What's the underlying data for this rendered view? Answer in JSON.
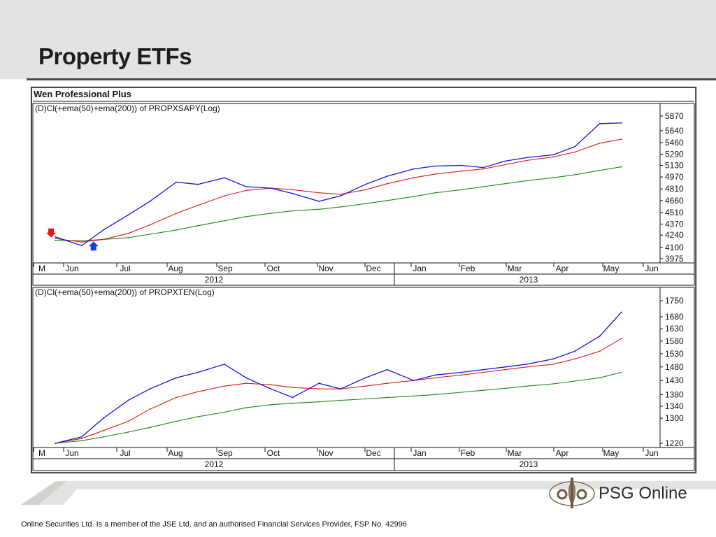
{
  "slide": {
    "title": "Property ETFs",
    "logo_text": "PSG Online",
    "disclaimer": "Online Securities Ltd. Is a member of the JSE Ltd. and an authorised Financial Services Provider, FSP No. 42996"
  },
  "chart_window": {
    "title": "Wen Professional Plus"
  },
  "colors": {
    "price": "#1414e6",
    "ema50": "#e01a1a",
    "ema200": "#1a8a1a",
    "sell_arrow": "#e01a1a",
    "buy_arrow": "#1a3ce0"
  },
  "chart_data": [
    {
      "type": "line",
      "title": "(D)Cl(+ema(50)+ema(200)) of PROPXSAPY(Log)",
      "y_scale": "log",
      "ylim": [
        3975,
        5870
      ],
      "y_ticks": [
        5870,
        5640,
        5460,
        5290,
        5130,
        4970,
        4810,
        4660,
        4510,
        4370,
        4240,
        4100,
        3975
      ],
      "x_ticks": [
        "M",
        "Jun",
        "Jul",
        "Aug",
        "Sep",
        "Oct",
        "Nov",
        "Dec",
        "Jan",
        "Feb",
        "Mar",
        "Apr",
        "May",
        "Jun"
      ],
      "years": [
        "2012",
        "2013"
      ],
      "dates": [
        "2012-05-15",
        "2012-06-01",
        "2012-06-15",
        "2012-07-01",
        "2012-07-15",
        "2012-08-01",
        "2012-08-15",
        "2012-09-01",
        "2012-09-15",
        "2012-10-01",
        "2012-10-15",
        "2012-11-01",
        "2012-11-15",
        "2012-12-01",
        "2012-12-15",
        "2013-01-01",
        "2013-01-15",
        "2013-02-01",
        "2013-02-15",
        "2013-03-01",
        "2013-03-15",
        "2013-04-01",
        "2013-04-15",
        "2013-05-01",
        "2013-05-15"
      ],
      "series": [
        {
          "values": [
            4220,
            4120,
            4300,
            4480,
            4650,
            4900,
            4870,
            4960,
            4840,
            4820,
            4750,
            4650,
            4720,
            4870,
            4980,
            5080,
            5120,
            5130,
            5100,
            5190,
            5240,
            5280,
            5400,
            5750,
            5760
          ]
        },
        {
          "values": [
            4200,
            4160,
            4190,
            4260,
            4360,
            4500,
            4600,
            4720,
            4790,
            4820,
            4800,
            4760,
            4740,
            4800,
            4880,
            4960,
            5010,
            5050,
            5080,
            5140,
            5200,
            5250,
            5320,
            5450,
            5510
          ]
        },
        {
          "values": [
            4180,
            4175,
            4190,
            4210,
            4250,
            4300,
            4350,
            4410,
            4460,
            4500,
            4530,
            4550,
            4580,
            4620,
            4660,
            4710,
            4760,
            4800,
            4840,
            4880,
            4920,
            4960,
            5000,
            5060,
            5110
          ]
        }
      ],
      "annotations": [
        "sell",
        "buy"
      ]
    },
    {
      "type": "line",
      "title": "(D)Cl(+ema(50)+ema(200)) of PROPXTEN(Log)",
      "y_scale": "log",
      "ylim": [
        1220,
        1750
      ],
      "y_ticks": [
        1750,
        1680,
        1630,
        1580,
        1530,
        1480,
        1430,
        1380,
        1340,
        1300,
        1220
      ],
      "x_ticks": [
        "M",
        "Jun",
        "Jul",
        "Aug",
        "Sep",
        "Oct",
        "Nov",
        "Dec",
        "Jan",
        "Feb",
        "Mar",
        "Apr",
        "May",
        "Jun"
      ],
      "years": [
        "2012",
        "2013"
      ],
      "dates": [
        "2012-05-15",
        "2012-06-01",
        "2012-06-15",
        "2012-07-01",
        "2012-07-15",
        "2012-08-01",
        "2012-08-15",
        "2012-09-01",
        "2012-09-15",
        "2012-10-01",
        "2012-10-15",
        "2012-11-01",
        "2012-11-15",
        "2012-12-01",
        "2012-12-15",
        "2013-01-01",
        "2013-01-15",
        "2013-02-01",
        "2013-02-15",
        "2013-03-01",
        "2013-03-15",
        "2013-04-01",
        "2013-04-15",
        "2013-05-01",
        "2013-05-15"
      ],
      "series": [
        {
          "values": [
            1220,
            1240,
            1300,
            1360,
            1400,
            1440,
            1460,
            1490,
            1440,
            1400,
            1370,
            1420,
            1400,
            1440,
            1470,
            1430,
            1450,
            1460,
            1470,
            1480,
            1490,
            1510,
            1540,
            1600,
            1700
          ]
        },
        {
          "values": [
            1220,
            1235,
            1260,
            1290,
            1330,
            1370,
            1390,
            1410,
            1420,
            1415,
            1405,
            1400,
            1400,
            1410,
            1420,
            1430,
            1440,
            1450,
            1460,
            1470,
            1480,
            1490,
            1510,
            1540,
            1590
          ]
        },
        {
          "values": [
            1220,
            1228,
            1240,
            1255,
            1270,
            1290,
            1305,
            1320,
            1335,
            1345,
            1350,
            1355,
            1360,
            1365,
            1370,
            1375,
            1380,
            1388,
            1395,
            1402,
            1410,
            1418,
            1428,
            1440,
            1460
          ]
        }
      ]
    }
  ]
}
